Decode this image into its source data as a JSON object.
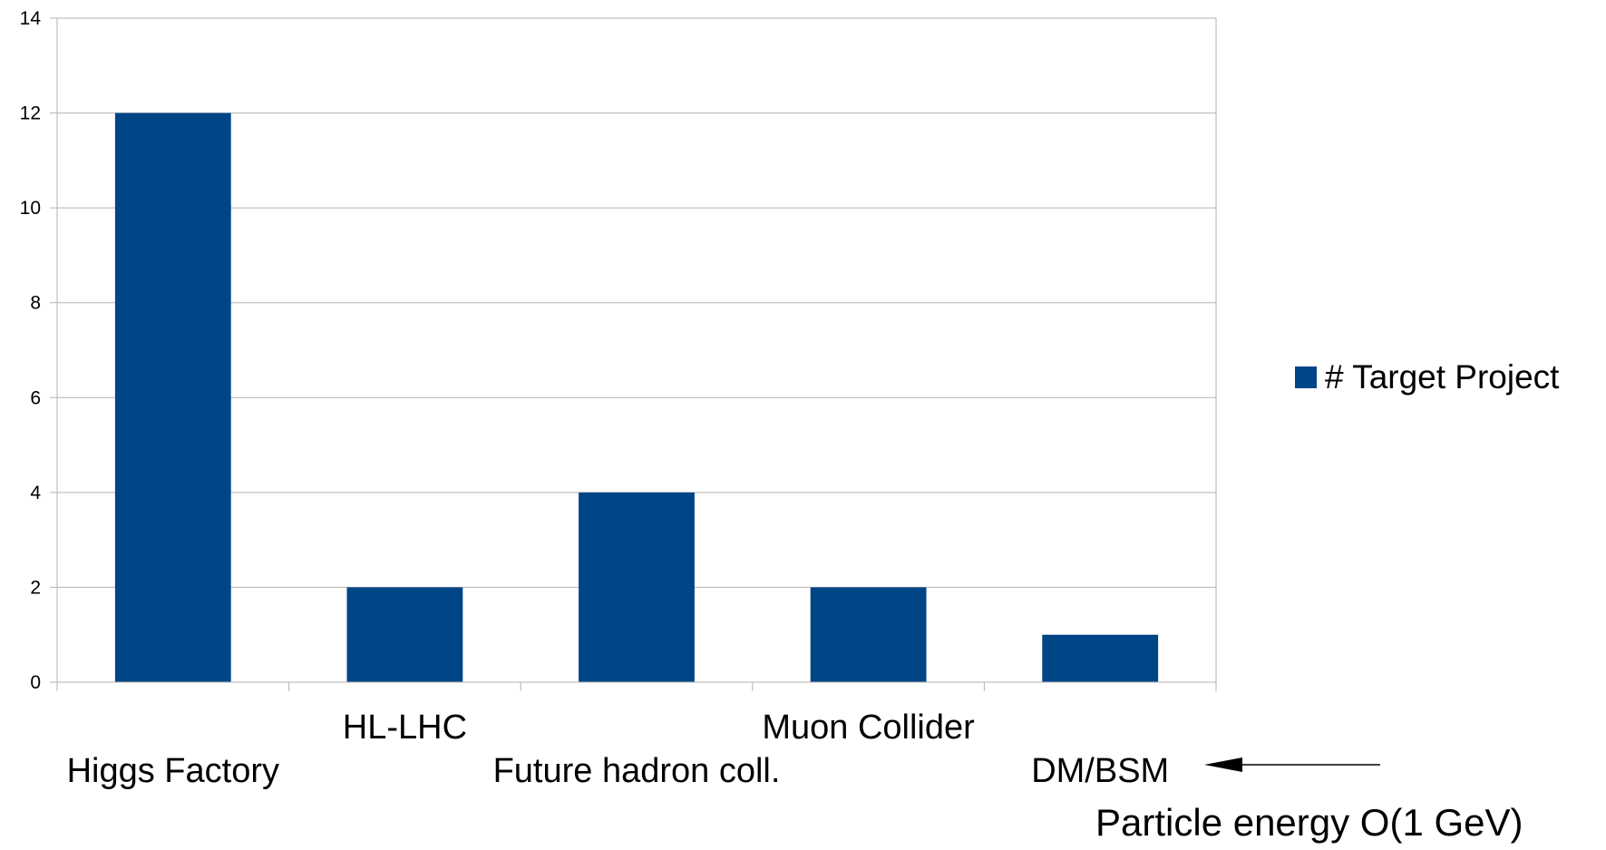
{
  "chart_data": {
    "type": "bar",
    "categories": [
      "Higgs Factory",
      "HL-LHC",
      "Future hadron coll.",
      "Muon Collider",
      "DM/BSM"
    ],
    "series": [
      {
        "name": "# Target Project",
        "values": [
          12,
          2,
          4,
          2,
          1
        ],
        "color": "#004586"
      }
    ],
    "ylim": [
      0,
      14
    ],
    "yticks": [
      0,
      2,
      4,
      6,
      8,
      10,
      12,
      14
    ],
    "grid": true,
    "legend": "right",
    "annotation": {
      "text": "Particle energy O(1 GeV)",
      "arrow": "left",
      "points_to": "DM/BSM"
    }
  },
  "colors": {
    "bar": "#004586",
    "grid": "#b3b3b3",
    "axis": "#b3b3b3",
    "text": "#000000"
  }
}
